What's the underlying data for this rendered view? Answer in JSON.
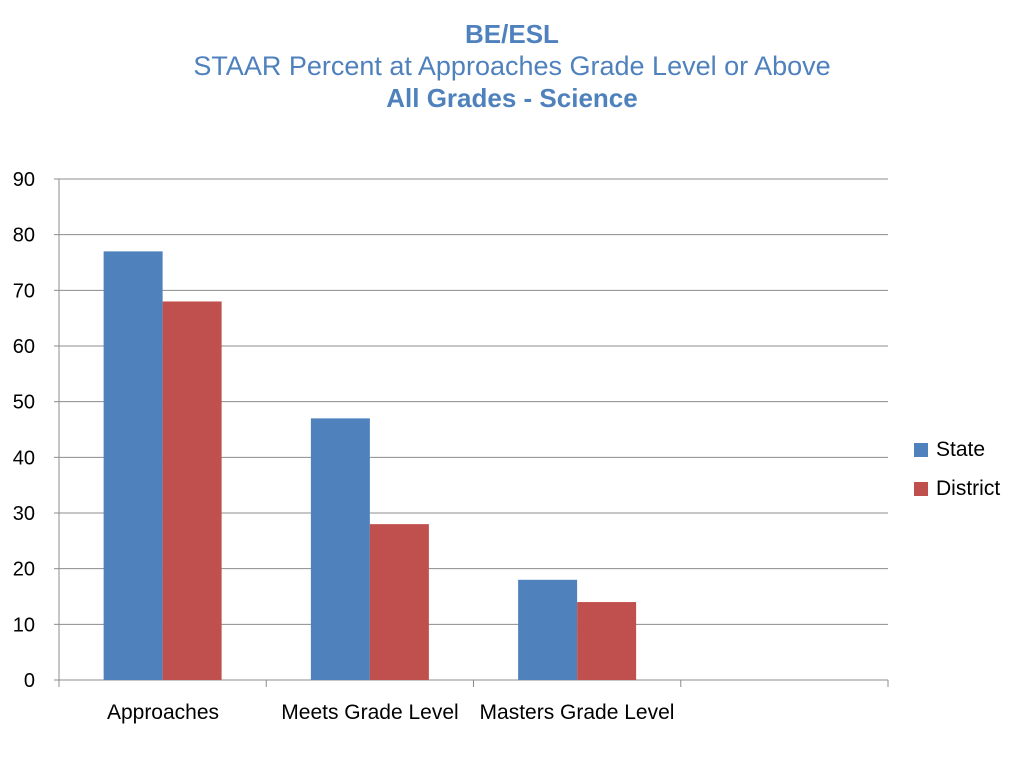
{
  "title": {
    "line1": "BE/ESL",
    "line2": "STAAR Percent at Approaches Grade Level or Above",
    "line3": "All Grades - Science"
  },
  "chart_data": {
    "type": "bar",
    "categories": [
      "Approaches",
      "Meets Grade Level",
      "Masters Grade Level"
    ],
    "series": [
      {
        "name": "State",
        "values": [
          77,
          47,
          18
        ],
        "color": "#4F81BD"
      },
      {
        "name": "District",
        "values": [
          68,
          28,
          14
        ],
        "color": "#C0504D"
      }
    ],
    "ylim": [
      0,
      90
    ],
    "yticks": [
      "0",
      "10",
      "20",
      "30",
      "40",
      "50",
      "60",
      "70",
      "80",
      "90"
    ],
    "grid": true,
    "legend": "right",
    "xlabel": "",
    "ylabel": ""
  }
}
